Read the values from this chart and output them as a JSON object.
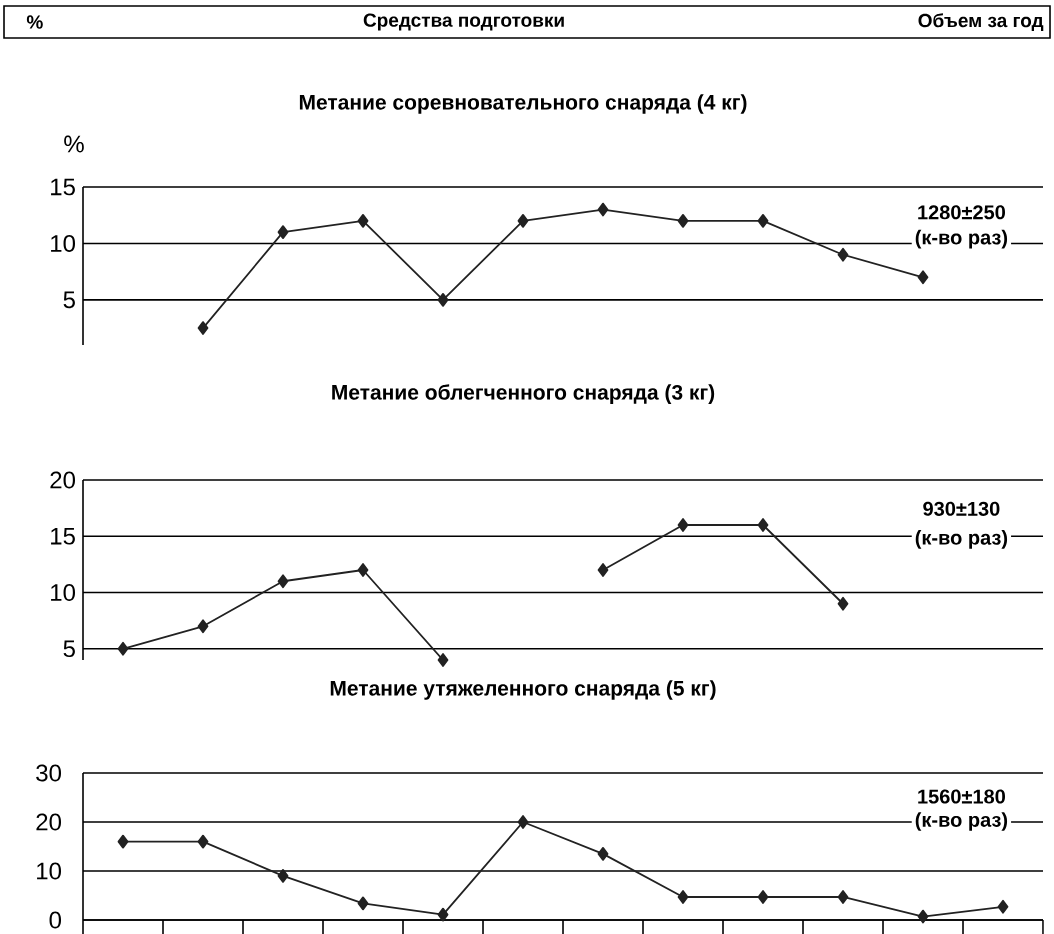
{
  "chart_data": [
    {
      "type": "other",
      "annotations": [
        "%",
        "Средства подготовки",
        "Объем за год"
      ]
    },
    {
      "type": "line",
      "title": "Метание соревновательного снаряда (4 кг)",
      "ylabel": "%",
      "categories": [
        null,
        null,
        null,
        null,
        null,
        null,
        null,
        null,
        null,
        null,
        null,
        null
      ],
      "series": [
        {
          "color": "#222222",
          "values": [
            null,
            2.5,
            11,
            12,
            5,
            12,
            13,
            12,
            12,
            9,
            7,
            null
          ]
        }
      ],
      "ylim": [
        1,
        15
      ],
      "yticks": [
        5,
        10,
        15
      ],
      "grid": "y",
      "marker": "diamond",
      "line_style": "solid",
      "tick_labels": "y",
      "annotations": [
        "1280±250",
        "(к-во раз)"
      ]
    },
    {
      "type": "line",
      "title": "Метание облегченного снаряда (3 кг)",
      "categories": [
        null,
        null,
        null,
        null,
        null,
        null,
        null,
        null,
        null,
        null,
        null,
        null
      ],
      "series": [
        {
          "color": "#222222",
          "values": [
            5,
            7,
            11,
            12,
            4,
            null,
            12,
            16,
            16,
            9,
            null,
            null
          ]
        }
      ],
      "ylim": [
        4,
        20
      ],
      "yticks": [
        5,
        10,
        15,
        20
      ],
      "grid": "y",
      "marker": "diamond",
      "line_style": "solid",
      "tick_labels": "y",
      "annotations": [
        "930±130",
        "(к-во раз)"
      ]
    },
    {
      "type": "line",
      "title": "Метание утяжеленного снаряда (5 кг)",
      "categories": [
        null,
        null,
        null,
        null,
        null,
        null,
        null,
        null,
        null,
        null,
        null,
        null
      ],
      "series": [
        {
          "color": "#222222",
          "values": [
            16,
            16,
            9,
            3.4,
            1.1,
            20,
            13.5,
            4.7,
            4.7,
            4.7,
            0.7,
            2.7
          ]
        }
      ],
      "ylim": [
        0,
        30
      ],
      "yticks": [
        0,
        10,
        20,
        30
      ],
      "grid": "y",
      "marker": "diamond",
      "line_style": "solid",
      "tick_labels": "y",
      "annotations": [
        "1560±180",
        "(к-во раз)"
      ]
    }
  ]
}
